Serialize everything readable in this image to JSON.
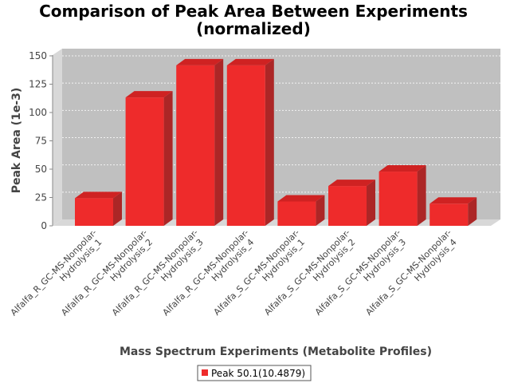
{
  "chart_data": {
    "type": "bar",
    "title_lines": [
      "Comparison of Peak Area Between Experiments",
      "(normalized)"
    ],
    "xlabel": "Mass Spectrum Experiments (Metabolite Profiles)",
    "ylabel": "Peak Area (1e-3)",
    "ylim": [
      0,
      150
    ],
    "yticks": [
      0,
      25,
      50,
      75,
      100,
      125,
      150
    ],
    "grid": true,
    "legend_position": "bottom-center",
    "categories": [
      [
        "Alfalfa_R_GC-MS-Nonpolar-",
        "Hydrolysis_1"
      ],
      [
        "Alfalfa_R_GC-MS-Nonpolar-",
        "Hydrolysis_2"
      ],
      [
        "Alfalfa_R_GC-MS-Nonpolar-",
        "Hydrolysis_3"
      ],
      [
        "Alfalfa_R_GC-MS-Nonpolar-",
        "Hydrolysis_4"
      ],
      [
        "Alfalfa_S_GC-MS-Nonpolar-",
        "Hydrolysis_1"
      ],
      [
        "Alfalfa_S_GC-MS-Nonpolar-",
        "Hydrolysis_2"
      ],
      [
        "Alfalfa_S_GC-MS-Nonpolar-",
        "Hydrolysis_3"
      ],
      [
        "Alfalfa_S_GC-MS-Nonpolar-",
        "Hydrolysis_4"
      ]
    ],
    "series": [
      {
        "name": "Peak 50.1(10.4879)",
        "color": "#ee2b2b",
        "values": [
          25,
          116,
          145,
          145,
          22,
          36,
          49,
          20
        ]
      }
    ]
  },
  "colors": {
    "plot_background": "#c0c0c0",
    "plot_wall": "#d8d8d8",
    "bar_front": "#ee2b2b",
    "bar_top": "#cf2222",
    "bar_side": "#ac2626"
  }
}
